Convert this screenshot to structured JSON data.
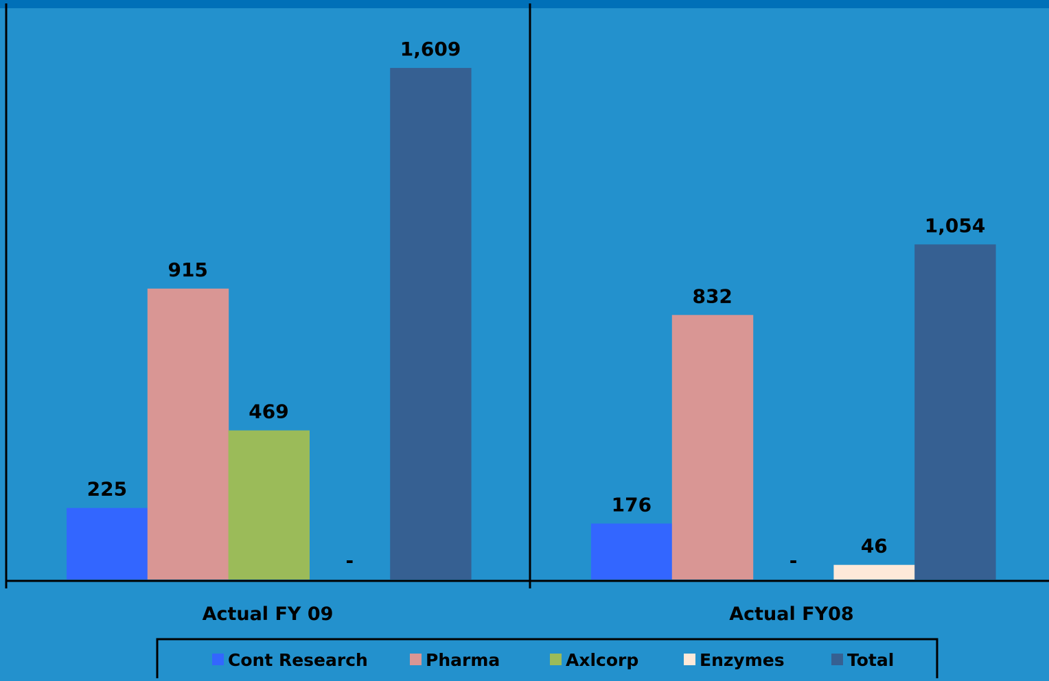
{
  "chart_data": {
    "type": "bar",
    "categories": [
      "Actual FY 09",
      "Actual FY08"
    ],
    "series": [
      {
        "name": "Cont Research",
        "color": "#3366ff",
        "values": [
          225,
          176
        ],
        "labels": [
          "225",
          "176"
        ]
      },
      {
        "name": "Pharma",
        "color": "#d99694",
        "values": [
          915,
          832
        ],
        "labels": [
          "915",
          "832"
        ]
      },
      {
        "name": "Axlcorp",
        "color": "#9bbb59",
        "values": [
          469,
          0
        ],
        "labels": [
          "469",
          "-"
        ]
      },
      {
        "name": "Enzymes",
        "color": "#fde9d9",
        "values": [
          0,
          46
        ],
        "labels": [
          "-",
          "46"
        ]
      },
      {
        "name": "Total",
        "color": "#366092",
        "values": [
          1609,
          1054
        ],
        "labels": [
          "1,609",
          "1,054"
        ]
      }
    ],
    "ylim": [
      0,
      1800
    ],
    "xlabel": "",
    "ylabel": "",
    "legend": "bottom",
    "grid": false,
    "colors": {
      "background": "#2391cd",
      "top_band": "#0070b8",
      "axis": "#000000"
    }
  }
}
